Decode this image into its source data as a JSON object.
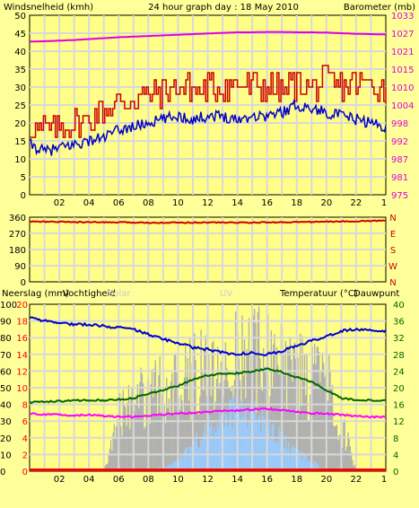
{
  "title": "24 hour graph day : 18 May 2010",
  "x_ticks": [
    "02",
    "04",
    "06",
    "08",
    "10",
    "12",
    "14",
    "16",
    "18",
    "20",
    "22",
    "1"
  ],
  "colors": {
    "background": "#ffff99",
    "plot_bg": "#ffff88",
    "grid": "#d8d8d8",
    "wind": "#cc0000",
    "gust": "#0000cc",
    "pressure": "#dd00dd",
    "direction": "#cc0000",
    "humidity": "#0000cc",
    "temperature": "#006600",
    "dewpoint": "#ff00ff",
    "solar": "#b0b0b0",
    "uv": "#99ccff",
    "rain": "#ff0000"
  },
  "chart_data": [
    {
      "type": "line",
      "panel": "wind-pressure",
      "left_axis": {
        "label": "Windsnelheid (kmh)",
        "ticks": [
          "0",
          "5",
          "10",
          "15",
          "20",
          "25",
          "30",
          "35",
          "40",
          "45",
          "50"
        ],
        "ylim": [
          0,
          50
        ]
      },
      "right_axis": {
        "label": "Barometer (mb)",
        "ticks": [
          "975",
          "981",
          "987",
          "992",
          "998",
          "1004",
          "1010",
          "1015",
          "1021",
          "1027",
          "1033"
        ],
        "ylim": [
          975,
          1033
        ]
      },
      "x_hours": [
        0,
        1,
        2,
        3,
        4,
        5,
        6,
        7,
        8,
        9,
        10,
        11,
        12,
        13,
        14,
        15,
        16,
        17,
        18,
        19,
        20,
        21,
        22,
        23,
        24
      ],
      "series": [
        {
          "key": "wind",
          "values": [
            19,
            18,
            19,
            20,
            21,
            24,
            25,
            27,
            28,
            29,
            30,
            29,
            30,
            30,
            31,
            30,
            30,
            29,
            31,
            30,
            31,
            30,
            31,
            31,
            30
          ]
        },
        {
          "key": "gust",
          "values": [
            14,
            12,
            13,
            14,
            15,
            16,
            18,
            19,
            20,
            21,
            22,
            21,
            22,
            22,
            21,
            22,
            22,
            23,
            25,
            24,
            23,
            22,
            21,
            20,
            19
          ]
        },
        {
          "key": "pressure",
          "values": [
            1024.5,
            1024.6,
            1024.8,
            1025.0,
            1025.3,
            1025.6,
            1025.9,
            1026.1,
            1026.3,
            1026.5,
            1026.7,
            1026.9,
            1027.1,
            1027.3,
            1027.5,
            1027.5,
            1027.6,
            1027.6,
            1027.5,
            1027.5,
            1027.4,
            1027.2,
            1027.0,
            1026.9,
            1026.8
          ]
        }
      ]
    },
    {
      "type": "line",
      "panel": "wind-direction",
      "left_axis": {
        "ticks": [
          "0",
          "90",
          "180",
          "270",
          "360"
        ],
        "ylim": [
          0,
          360
        ]
      },
      "right_axis": {
        "ticks": [
          "N",
          "W",
          "S",
          "E",
          "N"
        ]
      },
      "x_hours": [
        0,
        2,
        4,
        6,
        8,
        10,
        12,
        14,
        16,
        18,
        20,
        22,
        24
      ],
      "series": [
        {
          "key": "direction",
          "values": [
            336,
            334,
            332,
            331,
            330,
            330,
            331,
            330,
            331,
            333,
            335,
            338,
            341
          ]
        }
      ]
    },
    {
      "type": "line",
      "panel": "rain-humidity-temperature",
      "legend": {
        "rain": "Neerslag (mm)",
        "humidity": "Vochtigheid",
        "solar": "Solar",
        "uv": "UV",
        "temperature": "Temperatuur (°C)",
        "dewpoint": "Dauwpunt"
      },
      "left_axis_humidity": {
        "ticks": [
          "0",
          "10",
          "20",
          "30",
          "40",
          "50",
          "60",
          "70",
          "80",
          "90",
          "100"
        ],
        "ylim": [
          0,
          100
        ]
      },
      "left_axis_rain": {
        "ticks": [
          "0",
          "2",
          "4",
          "6",
          "8",
          "10",
          "12",
          "14",
          "16",
          "18",
          "20"
        ]
      },
      "right_axis": {
        "ticks": [
          "0",
          "4",
          "8",
          "12",
          "16",
          "20",
          "24",
          "28",
          "32",
          "36",
          "40"
        ],
        "ylim": [
          0,
          40
        ]
      },
      "x_hours": [
        0,
        1,
        2,
        3,
        4,
        5,
        6,
        7,
        8,
        9,
        10,
        11,
        12,
        13,
        14,
        15,
        16,
        17,
        18,
        19,
        20,
        21,
        22,
        23,
        24
      ],
      "series": [
        {
          "key": "humidity",
          "values": [
            92,
            90,
            89,
            88,
            88,
            87,
            86,
            85,
            82,
            79,
            77,
            74,
            73,
            71,
            70,
            71,
            70,
            72,
            75,
            78,
            81,
            84,
            85,
            84,
            84
          ]
        },
        {
          "key": "temperature",
          "values": [
            16.5,
            16.6,
            16.8,
            16.9,
            17.0,
            17.0,
            17.2,
            17.5,
            18.5,
            19.5,
            20.5,
            22.0,
            23.0,
            23.3,
            23.5,
            24.0,
            24.5,
            23.8,
            22.5,
            21.5,
            19.5,
            17.5,
            17.0,
            17.0,
            17.0
          ]
        },
        {
          "key": "dewpoint",
          "values": [
            13.8,
            13.6,
            13.5,
            13.4,
            13.5,
            13.2,
            13.0,
            13.0,
            13.3,
            13.6,
            13.8,
            14.0,
            14.2,
            14.5,
            14.5,
            14.8,
            15.0,
            14.6,
            14.2,
            13.9,
            13.8,
            13.5,
            13.2,
            13.0,
            13.0
          ]
        },
        {
          "key": "solar",
          "values": [
            0,
            0,
            0,
            0,
            0,
            0,
            55,
            60,
            70,
            75,
            80,
            85,
            90,
            95,
            100,
            100,
            98,
            90,
            85,
            80,
            75,
            40,
            0,
            0,
            0
          ]
        },
        {
          "key": "uv",
          "values": [
            0,
            0,
            0,
            0,
            0,
            0,
            0,
            0,
            0,
            1,
            3,
            6,
            9,
            12,
            14,
            13,
            10,
            7,
            4,
            2,
            0,
            0,
            0,
            0,
            0
          ]
        },
        {
          "key": "rain",
          "values": [
            0,
            0,
            0,
            0,
            0,
            0,
            0,
            0,
            0,
            0,
            0,
            0,
            0,
            0,
            0,
            0,
            0,
            0,
            0,
            0,
            0,
            0,
            0,
            0,
            0
          ]
        }
      ]
    }
  ]
}
